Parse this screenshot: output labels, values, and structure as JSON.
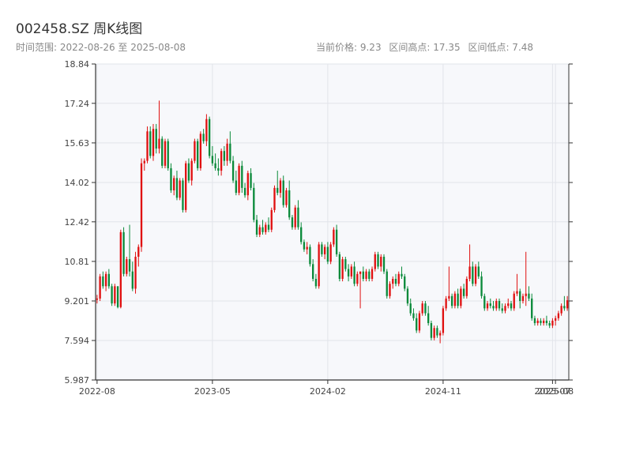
{
  "header": {
    "title": "002458.SZ 周K线图",
    "subtitle": "时间范围: 2022-08-26 至 2025-08-08",
    "stats": {
      "current": "当前价格: 9.23",
      "high": "区间高点: 17.35",
      "low": "区间低点: 7.48"
    }
  },
  "colors": {
    "up": "#e01010",
    "down": "#0a8a3a",
    "plot_bg": "#f7f8fb",
    "grid": "#e2e4ea",
    "axis": "#333333"
  },
  "chart_data": {
    "type": "candlestick",
    "ylim": [
      5.987,
      18.84
    ],
    "y_ticks": [
      "5.987",
      "7.594",
      "9.201",
      "10.81",
      "12.42",
      "14.02",
      "15.63",
      "17.24",
      "18.84"
    ],
    "x_ticks": [
      {
        "label": "2022-08",
        "index": 0
      },
      {
        "label": "2023-05",
        "index": 39
      },
      {
        "label": "2024-02",
        "index": 78
      },
      {
        "label": "2024-11",
        "index": 117
      },
      {
        "label": "2025-07",
        "index": 154
      },
      {
        "label": "2025-08",
        "index": 155
      }
    ],
    "grid": true,
    "candles": [
      [
        9.25,
        9.45,
        9.1,
        9.3
      ],
      [
        9.3,
        10.3,
        9.2,
        10.2
      ],
      [
        10.2,
        10.4,
        9.7,
        9.8
      ],
      [
        9.8,
        10.4,
        9.6,
        10.3
      ],
      [
        10.3,
        10.5,
        9.7,
        9.8
      ],
      [
        9.8,
        9.9,
        9.0,
        9.1
      ],
      [
        9.1,
        9.9,
        9.0,
        9.8
      ],
      [
        9.8,
        9.8,
        8.9,
        8.95
      ],
      [
        8.95,
        12.1,
        8.9,
        12.0
      ],
      [
        12.0,
        12.2,
        10.2,
        10.3
      ],
      [
        10.3,
        11.0,
        10.2,
        10.9
      ],
      [
        10.9,
        12.3,
        10.2,
        10.4
      ],
      [
        10.4,
        10.8,
        9.6,
        9.7
      ],
      [
        9.7,
        11.2,
        9.5,
        11.0
      ],
      [
        11.0,
        11.5,
        10.6,
        11.4
      ],
      [
        11.4,
        15.0,
        11.2,
        14.8
      ],
      [
        14.8,
        15.0,
        14.5,
        14.9
      ],
      [
        14.9,
        16.3,
        14.8,
        16.1
      ],
      [
        16.1,
        16.3,
        15.0,
        15.1
      ],
      [
        15.1,
        16.4,
        14.9,
        16.2
      ],
      [
        16.2,
        16.4,
        15.2,
        15.4
      ],
      [
        15.4,
        17.35,
        15.2,
        15.8
      ],
      [
        15.8,
        15.9,
        14.6,
        14.7
      ],
      [
        14.7,
        15.8,
        14.6,
        15.7
      ],
      [
        15.7,
        15.8,
        14.5,
        14.6
      ],
      [
        14.6,
        14.8,
        13.6,
        13.7
      ],
      [
        13.7,
        14.3,
        13.5,
        14.2
      ],
      [
        14.2,
        14.5,
        13.3,
        13.4
      ],
      [
        13.4,
        14.2,
        13.3,
        14.1
      ],
      [
        14.1,
        14.2,
        12.8,
        12.9
      ],
      [
        12.9,
        14.9,
        12.8,
        14.8
      ],
      [
        14.8,
        15.0,
        14.0,
        14.1
      ],
      [
        14.1,
        15.0,
        13.9,
        14.9
      ],
      [
        14.9,
        15.8,
        14.8,
        15.7
      ],
      [
        15.7,
        15.8,
        14.5,
        14.6
      ],
      [
        14.6,
        16.1,
        14.5,
        16.0
      ],
      [
        16.0,
        16.2,
        15.6,
        15.7
      ],
      [
        15.7,
        16.8,
        15.5,
        16.6
      ],
      [
        16.6,
        16.7,
        15.0,
        15.1
      ],
      [
        15.1,
        15.5,
        14.7,
        14.8
      ],
      [
        14.8,
        15.2,
        14.5,
        14.6
      ],
      [
        14.6,
        15.0,
        14.3,
        14.5
      ],
      [
        14.5,
        15.4,
        14.3,
        15.3
      ],
      [
        15.3,
        15.5,
        14.7,
        14.9
      ],
      [
        14.9,
        15.8,
        14.7,
        15.6
      ],
      [
        15.6,
        16.1,
        14.8,
        14.9
      ],
      [
        14.9,
        15.1,
        14.0,
        14.1
      ],
      [
        14.1,
        14.5,
        13.5,
        13.6
      ],
      [
        13.6,
        14.8,
        13.5,
        14.7
      ],
      [
        14.7,
        14.9,
        13.6,
        13.8
      ],
      [
        13.8,
        14.0,
        13.4,
        13.5
      ],
      [
        13.5,
        14.5,
        13.3,
        14.4
      ],
      [
        14.4,
        14.6,
        13.7,
        13.8
      ],
      [
        13.8,
        14.0,
        12.4,
        12.5
      ],
      [
        12.5,
        12.7,
        11.8,
        11.9
      ],
      [
        11.9,
        12.3,
        11.8,
        12.2
      ],
      [
        12.2,
        12.5,
        11.9,
        12.0
      ],
      [
        12.0,
        12.4,
        11.9,
        12.3
      ],
      [
        12.3,
        12.6,
        12.0,
        12.1
      ],
      [
        12.1,
        13.0,
        12.0,
        12.9
      ],
      [
        12.9,
        13.9,
        12.8,
        13.8
      ],
      [
        13.8,
        14.5,
        13.5,
        13.6
      ],
      [
        13.6,
        14.2,
        13.4,
        14.1
      ],
      [
        14.1,
        14.3,
        13.0,
        13.1
      ],
      [
        13.1,
        13.8,
        13.0,
        13.7
      ],
      [
        13.7,
        14.1,
        12.5,
        12.6
      ],
      [
        12.6,
        12.7,
        12.1,
        12.2
      ],
      [
        12.2,
        13.1,
        12.1,
        13.0
      ],
      [
        13.0,
        13.3,
        12.1,
        12.2
      ],
      [
        12.2,
        12.4,
        11.5,
        11.6
      ],
      [
        11.6,
        11.7,
        11.2,
        11.3
      ],
      [
        11.3,
        11.6,
        11.1,
        11.4
      ],
      [
        11.4,
        11.5,
        10.6,
        10.7
      ],
      [
        10.7,
        10.9,
        10.0,
        10.1
      ],
      [
        10.1,
        10.3,
        9.7,
        9.8
      ],
      [
        9.8,
        11.6,
        9.7,
        11.5
      ],
      [
        11.5,
        11.6,
        11.0,
        11.1
      ],
      [
        11.1,
        11.5,
        10.9,
        11.4
      ],
      [
        11.4,
        11.6,
        10.7,
        10.8
      ],
      [
        10.8,
        11.6,
        10.7,
        11.5
      ],
      [
        11.5,
        12.2,
        11.4,
        12.1
      ],
      [
        12.1,
        12.3,
        11.0,
        11.1
      ],
      [
        11.1,
        11.2,
        10.0,
        10.1
      ],
      [
        10.1,
        11.0,
        10.0,
        10.9
      ],
      [
        10.9,
        11.0,
        10.4,
        10.5
      ],
      [
        10.5,
        10.7,
        10.0,
        10.2
      ],
      [
        10.2,
        10.7,
        10.1,
        10.6
      ],
      [
        10.6,
        10.8,
        9.8,
        9.9
      ],
      [
        9.9,
        10.4,
        9.8,
        10.3
      ],
      [
        10.3,
        10.4,
        8.9,
        10.4
      ],
      [
        10.4,
        10.6,
        10.0,
        10.1
      ],
      [
        10.1,
        10.5,
        10.0,
        10.4
      ],
      [
        10.4,
        10.5,
        10.0,
        10.1
      ],
      [
        10.1,
        10.6,
        10.0,
        10.5
      ],
      [
        10.5,
        11.2,
        10.4,
        11.1
      ],
      [
        11.1,
        11.2,
        10.5,
        10.6
      ],
      [
        10.6,
        11.1,
        10.4,
        11.0
      ],
      [
        11.0,
        11.1,
        10.3,
        10.4
      ],
      [
        10.4,
        10.5,
        9.3,
        9.4
      ],
      [
        9.4,
        10.0,
        9.3,
        9.9
      ],
      [
        9.9,
        10.2,
        9.7,
        10.1
      ],
      [
        10.1,
        10.3,
        9.8,
        9.9
      ],
      [
        9.9,
        10.4,
        9.8,
        10.3
      ],
      [
        10.3,
        10.6,
        10.1,
        10.2
      ],
      [
        10.2,
        10.3,
        9.6,
        9.7
      ],
      [
        9.7,
        9.8,
        9.0,
        9.1
      ],
      [
        9.1,
        9.3,
        8.6,
        8.7
      ],
      [
        8.7,
        8.9,
        8.4,
        8.5
      ],
      [
        8.5,
        8.7,
        7.9,
        8.0
      ],
      [
        8.0,
        8.8,
        7.9,
        8.7
      ],
      [
        8.7,
        9.2,
        8.6,
        9.1
      ],
      [
        9.1,
        9.2,
        8.6,
        8.7
      ],
      [
        8.7,
        9.0,
        8.2,
        8.3
      ],
      [
        8.3,
        8.4,
        7.6,
        7.7
      ],
      [
        7.7,
        8.2,
        7.6,
        8.1
      ],
      [
        8.1,
        8.2,
        7.7,
        7.8
      ],
      [
        7.8,
        8.0,
        7.48,
        7.9
      ],
      [
        7.9,
        9.0,
        7.8,
        8.9
      ],
      [
        8.9,
        9.4,
        8.8,
        9.3
      ],
      [
        9.3,
        10.6,
        9.2,
        9.4
      ],
      [
        9.4,
        9.5,
        8.9,
        9.0
      ],
      [
        9.0,
        9.6,
        8.9,
        9.5
      ],
      [
        9.5,
        9.7,
        8.9,
        9.0
      ],
      [
        9.0,
        9.8,
        8.9,
        9.7
      ],
      [
        9.7,
        9.9,
        9.3,
        9.4
      ],
      [
        9.4,
        10.2,
        9.3,
        10.1
      ],
      [
        10.1,
        11.5,
        10.0,
        10.6
      ],
      [
        10.6,
        10.8,
        9.8,
        9.9
      ],
      [
        9.9,
        10.7,
        9.8,
        10.6
      ],
      [
        10.6,
        10.8,
        10.1,
        10.2
      ],
      [
        10.2,
        10.4,
        9.3,
        9.4
      ],
      [
        9.4,
        9.5,
        8.8,
        8.9
      ],
      [
        8.9,
        9.2,
        8.8,
        9.1
      ],
      [
        9.1,
        9.3,
        8.9,
        9.0
      ],
      [
        9.0,
        9.2,
        8.8,
        8.9
      ],
      [
        8.9,
        9.3,
        8.8,
        9.2
      ],
      [
        9.2,
        9.3,
        8.8,
        8.9
      ],
      [
        8.9,
        9.1,
        8.7,
        8.8
      ],
      [
        8.8,
        9.1,
        8.7,
        9.0
      ],
      [
        9.0,
        9.3,
        8.9,
        9.1
      ],
      [
        9.1,
        9.2,
        8.8,
        8.9
      ],
      [
        8.9,
        9.6,
        8.8,
        9.5
      ],
      [
        9.5,
        10.3,
        9.4,
        9.6
      ],
      [
        9.6,
        9.7,
        8.9,
        9.2
      ],
      [
        9.2,
        9.5,
        9.1,
        9.4
      ],
      [
        9.4,
        11.2,
        9.0,
        9.5
      ],
      [
        9.5,
        9.8,
        9.2,
        9.3
      ],
      [
        9.3,
        9.5,
        8.4,
        8.5
      ],
      [
        8.5,
        8.6,
        8.2,
        8.3
      ],
      [
        8.3,
        8.5,
        8.2,
        8.4
      ],
      [
        8.4,
        8.5,
        8.2,
        8.3
      ],
      [
        8.3,
        8.5,
        8.2,
        8.4
      ],
      [
        8.4,
        8.6,
        8.2,
        8.3
      ],
      [
        8.3,
        8.4,
        8.1,
        8.2
      ],
      [
        8.2,
        8.5,
        8.1,
        8.4
      ],
      [
        8.4,
        8.6,
        8.2,
        8.5
      ],
      [
        8.5,
        8.8,
        8.4,
        8.7
      ],
      [
        8.7,
        9.1,
        8.6,
        9.0
      ],
      [
        9.0,
        9.4,
        8.8,
        8.9
      ],
      [
        8.9,
        9.4,
        8.8,
        9.23
      ]
    ]
  }
}
